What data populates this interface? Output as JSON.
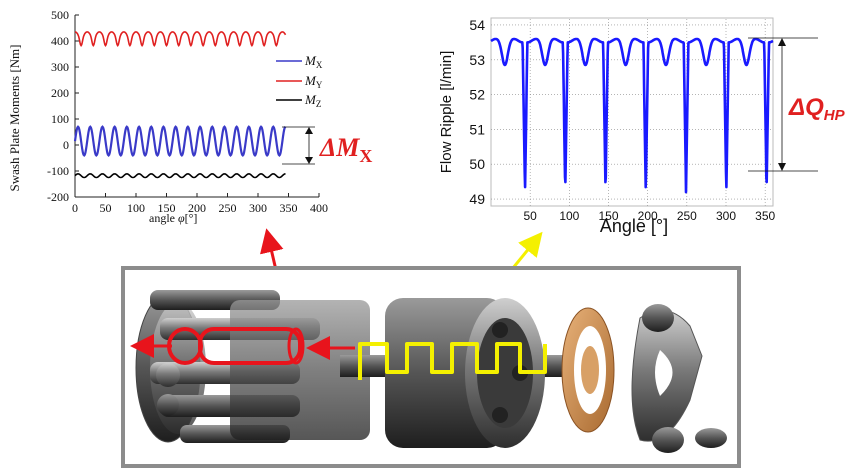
{
  "chart_data": [
    {
      "type": "line",
      "ylabel": "Swash Plate Moments [Nm]",
      "xlabel_word": "angle",
      "xlabel_symbol": "φ",
      "xlabel_unit": "[°]",
      "xlim": [
        0,
        400
      ],
      "ylim": [
        -200,
        500
      ],
      "xticks": [
        "0",
        "50",
        "100",
        "150",
        "200",
        "250",
        "300",
        "350",
        "400"
      ],
      "yticks": [
        "500",
        "400",
        "300",
        "200",
        "100",
        "0",
        "-100",
        "-200"
      ],
      "series": [
        {
          "name": "M",
          "sub": "X",
          "color": "#3a3ac8",
          "mean": 15,
          "amp": 55,
          "period": 20,
          "x_range": [
            0,
            345
          ]
        },
        {
          "name": "M",
          "sub": "Y",
          "color": "#e02020",
          "mean": 413,
          "amp": 22,
          "period": 20,
          "x_range": [
            0,
            345
          ]
        },
        {
          "name": "M",
          "sub": "Z",
          "color": "#000000",
          "mean": -118,
          "amp": 7,
          "period": 20,
          "x_range": [
            0,
            345
          ]
        }
      ],
      "annotation": {
        "symbol": "ΔM",
        "sub": "X",
        "color": "#e02020"
      }
    },
    {
      "type": "line",
      "ylabel": "Flow Ripple [l/min]",
      "xlabel": "Angle  [°]",
      "xlim": [
        0,
        360
      ],
      "ylim": [
        48.8,
        54.2
      ],
      "xticks": [
        "50",
        "100",
        "150",
        "200",
        "250",
        "300",
        "350"
      ],
      "yticks": [
        "54",
        "53",
        "52",
        "51",
        "50",
        "49"
      ],
      "series": [
        {
          "color": "#1a1aff",
          "peak": 53.6,
          "trough": 49.2,
          "period": 51.4,
          "x_range": [
            0,
            360
          ]
        }
      ],
      "annotation": {
        "symbol": "ΔQ",
        "sub": "HP",
        "color": "#e02020"
      }
    }
  ],
  "diagram": {
    "frame_color": "#8c8c8c",
    "highlight_red": "#e8141c",
    "highlight_yellow": "#f4f000",
    "arrow_yellow": "#f4f000"
  }
}
